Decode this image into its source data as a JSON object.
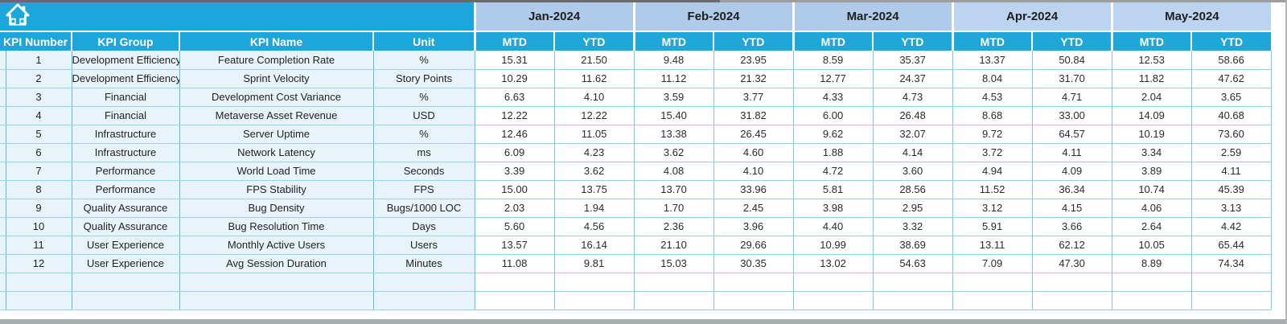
{
  "colors": {
    "header_cyan": "#1BA7DC",
    "subheader_cyan": "#1FA7DA",
    "month_blue_early": "#AFCBE9",
    "month_blue_late": "#BCD4F0",
    "left_cell_blue": "#E9F4FA",
    "cell_white": "#FFFFFF",
    "grid_cyan": "#76CBE6",
    "header_text": "#FFFFFF",
    "body_text": "#2B2B2B"
  },
  "icons": {
    "home": "home-icon"
  },
  "table": {
    "left_headers": [
      "KPI Number",
      "KPI Group",
      "KPI Name",
      "Unit"
    ],
    "months": [
      "Jan-2024",
      "Feb-2024",
      "Mar-2024",
      "Apr-2024",
      "May-2024"
    ],
    "sub_headers": [
      "MTD",
      "YTD"
    ],
    "rows": [
      {
        "number": "1",
        "group": "Development Efficiency",
        "name": "Feature Completion Rate",
        "unit": "%",
        "values": [
          "15.31",
          "21.50",
          "9.48",
          "23.95",
          "8.59",
          "35.37",
          "13.37",
          "50.84",
          "12.53",
          "58.66"
        ]
      },
      {
        "number": "2",
        "group": "Development Efficiency",
        "name": "Sprint Velocity",
        "unit": "Story Points",
        "values": [
          "10.29",
          "11.62",
          "11.12",
          "21.32",
          "12.77",
          "24.37",
          "8.04",
          "31.70",
          "11.82",
          "47.62"
        ]
      },
      {
        "number": "3",
        "group": "Financial",
        "name": "Development Cost Variance",
        "unit": "%",
        "values": [
          "6.63",
          "4.10",
          "3.59",
          "3.77",
          "4.33",
          "4.73",
          "4.53",
          "4.71",
          "2.04",
          "3.65"
        ]
      },
      {
        "number": "4",
        "group": "Financial",
        "name": "Metaverse Asset Revenue",
        "unit": "USD",
        "values": [
          "12.22",
          "12.22",
          "15.40",
          "31.82",
          "6.00",
          "26.48",
          "8.68",
          "33.00",
          "14.09",
          "40.68"
        ]
      },
      {
        "number": "5",
        "group": "Infrastructure",
        "name": "Server Uptime",
        "unit": "%",
        "values": [
          "12.46",
          "11.05",
          "13.38",
          "26.45",
          "9.62",
          "32.07",
          "9.72",
          "64.57",
          "10.19",
          "73.60"
        ]
      },
      {
        "number": "6",
        "group": "Infrastructure",
        "name": "Network Latency",
        "unit": "ms",
        "values": [
          "6.09",
          "4.23",
          "3.62",
          "4.60",
          "1.88",
          "4.14",
          "3.72",
          "4.11",
          "3.34",
          "2.59"
        ]
      },
      {
        "number": "7",
        "group": "Performance",
        "name": "World Load Time",
        "unit": "Seconds",
        "values": [
          "3.39",
          "3.62",
          "4.08",
          "4.10",
          "4.72",
          "3.60",
          "4.94",
          "4.09",
          "3.89",
          "4.11"
        ]
      },
      {
        "number": "8",
        "group": "Performance",
        "name": "FPS Stability",
        "unit": "FPS",
        "values": [
          "15.00",
          "13.75",
          "13.70",
          "33.96",
          "5.81",
          "28.56",
          "11.52",
          "36.34",
          "10.74",
          "45.39"
        ]
      },
      {
        "number": "9",
        "group": "Quality Assurance",
        "name": "Bug Density",
        "unit": "Bugs/1000 LOC",
        "values": [
          "2.03",
          "1.94",
          "1.70",
          "2.45",
          "3.98",
          "2.95",
          "3.12",
          "4.15",
          "4.06",
          "3.13"
        ]
      },
      {
        "number": "10",
        "group": "Quality Assurance",
        "name": "Bug Resolution Time",
        "unit": "Days",
        "values": [
          "5.60",
          "4.56",
          "2.36",
          "3.96",
          "4.40",
          "3.32",
          "5.91",
          "3.66",
          "2.64",
          "4.42"
        ]
      },
      {
        "number": "11",
        "group": "User Experience",
        "name": "Monthly Active Users",
        "unit": "Users",
        "values": [
          "13.57",
          "16.14",
          "21.10",
          "29.66",
          "10.99",
          "38.69",
          "13.11",
          "62.12",
          "10.05",
          "65.44"
        ]
      },
      {
        "number": "12",
        "group": "User Experience",
        "name": "Avg Session Duration",
        "unit": "Minutes",
        "values": [
          "11.08",
          "9.81",
          "15.03",
          "30.35",
          "13.02",
          "54.63",
          "7.09",
          "47.30",
          "8.89",
          "74.34"
        ]
      }
    ],
    "empty_rows": 2
  }
}
